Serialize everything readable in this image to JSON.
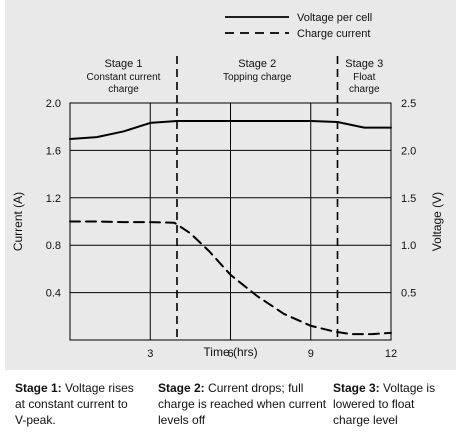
{
  "chart_data": {
    "type": "line",
    "title": "",
    "xlabel": "Time (hrs)",
    "ylabel": "Current (A)",
    "y2label": "Voltage (V)",
    "xlim": [
      0,
      12
    ],
    "ylim": [
      0,
      2.0
    ],
    "y2lim": [
      0,
      2.5
    ],
    "x_ticks": [
      3,
      6,
      9,
      12
    ],
    "y_ticks": [
      0.4,
      0.8,
      1.2,
      1.6,
      2.0
    ],
    "y2_ticks": [
      0.5,
      1.0,
      1.5,
      2.0,
      2.5
    ],
    "grid": true,
    "legend_position": "top-right",
    "series": [
      {
        "name": "Voltage per cell",
        "axis": "right",
        "style": "solid",
        "points": [
          [
            0,
            2.12
          ],
          [
            1,
            2.14
          ],
          [
            2,
            2.2
          ],
          [
            3,
            2.29
          ],
          [
            4,
            2.31
          ],
          [
            5,
            2.31
          ],
          [
            6,
            2.31
          ],
          [
            7,
            2.31
          ],
          [
            8,
            2.31
          ],
          [
            9,
            2.31
          ],
          [
            10,
            2.3
          ],
          [
            11,
            2.24
          ],
          [
            12,
            2.24
          ]
        ]
      },
      {
        "name": "Charge current",
        "axis": "left",
        "style": "dashed",
        "points": [
          [
            0,
            1.0
          ],
          [
            1,
            1.0
          ],
          [
            2,
            0.995
          ],
          [
            3,
            0.995
          ],
          [
            3.9,
            0.99
          ],
          [
            4.5,
            0.9
          ],
          [
            5.2,
            0.75
          ],
          [
            6,
            0.55
          ],
          [
            7,
            0.37
          ],
          [
            8,
            0.22
          ],
          [
            9,
            0.12
          ],
          [
            9.9,
            0.07
          ],
          [
            10.5,
            0.05
          ],
          [
            11.3,
            0.05
          ],
          [
            12,
            0.06
          ]
        ]
      }
    ],
    "stage_boundaries": [
      4,
      10
    ],
    "stage_labels": [
      {
        "title": "Stage 1",
        "subtitle": "Constant current charge",
        "x_center": 2
      },
      {
        "title": "Stage 2",
        "subtitle": "Topping charge",
        "x_center": 7
      },
      {
        "title": "Stage 3",
        "subtitle": "Float charge",
        "x_center": 11
      }
    ]
  },
  "stages": [
    {
      "heading": "Stage 1:",
      "description": "Voltage rises at constant current to V-peak."
    },
    {
      "heading": "Stage 2:",
      "description": "Current drops; full charge is reached when current levels off"
    },
    {
      "heading": "Stage 3:",
      "description": "Voltage is lowered to float charge level"
    }
  ]
}
